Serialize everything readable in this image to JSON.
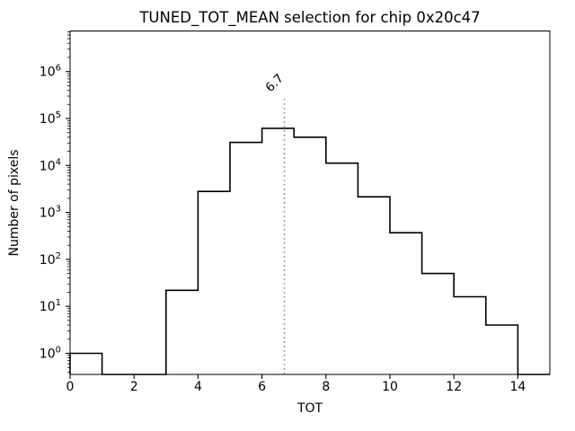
{
  "figure": {
    "background": "#ffffff",
    "frame_color": "#000000"
  },
  "chart_data": {
    "type": "bar",
    "subtype": "step-histogram",
    "title": "TUNED_TOT_MEAN selection for chip 0x20c47",
    "xlabel": "TOT",
    "ylabel": "Number of pixels",
    "yscale": "log",
    "grid": false,
    "legend": false,
    "xlim": [
      0,
      15
    ],
    "ylim": [
      0.35,
      7000000
    ],
    "bin_edges": [
      0,
      1,
      2,
      3,
      4,
      5,
      6,
      7,
      8,
      9,
      10,
      11,
      12,
      13,
      14,
      15
    ],
    "values": [
      1,
      0,
      0,
      22,
      2800,
      31000,
      62000,
      40000,
      11200,
      2150,
      370,
      50,
      16,
      4,
      0
    ],
    "x_ticks": [
      0,
      2,
      4,
      6,
      8,
      10,
      12,
      14
    ],
    "y_tick_exponents": [
      0,
      1,
      2,
      3,
      4,
      5,
      6
    ],
    "y_tick_base": "10",
    "line_color": "#000000",
    "vline": {
      "x": 6.7,
      "label": "6.7",
      "style": "dotted",
      "color": "#8c8c8c"
    }
  }
}
